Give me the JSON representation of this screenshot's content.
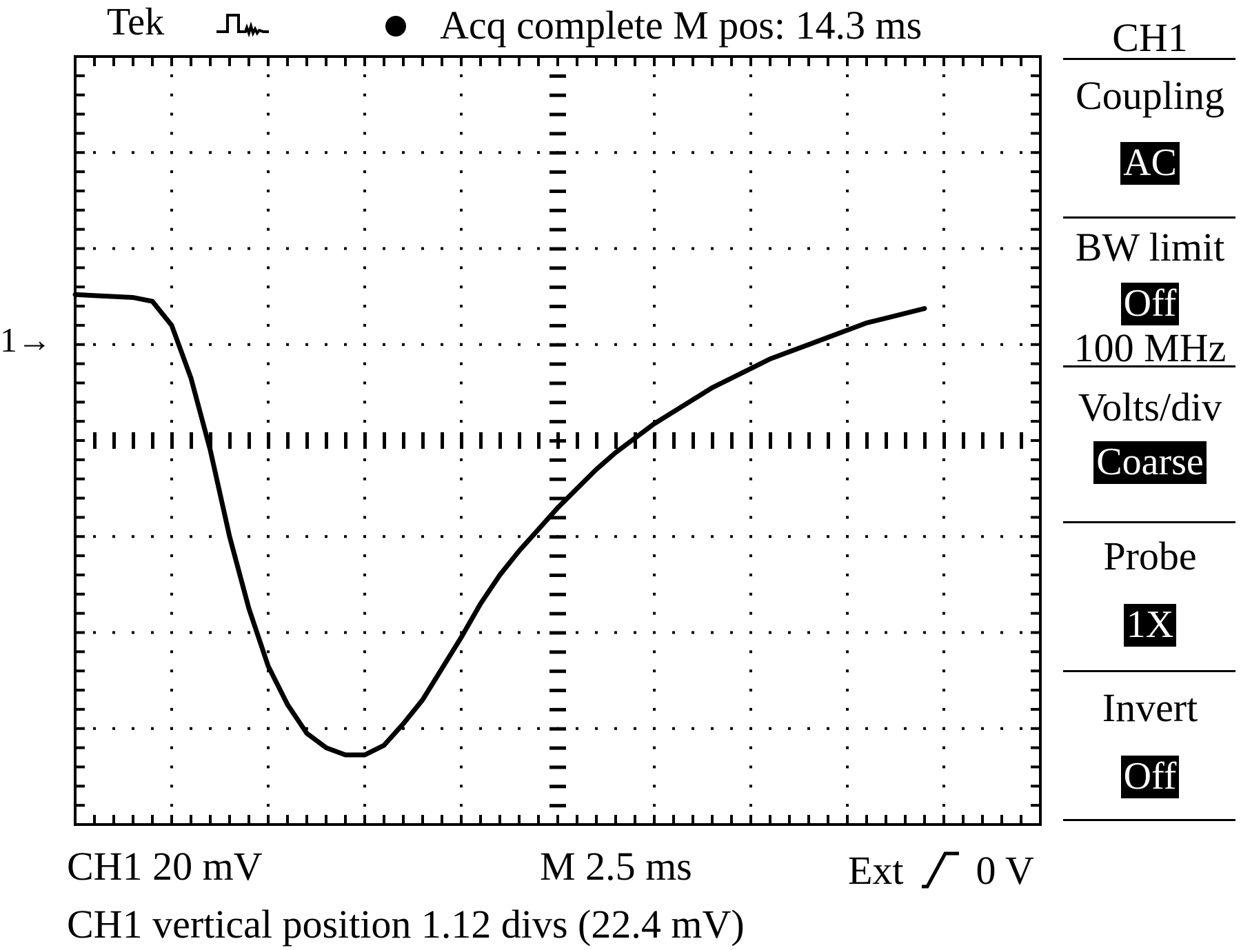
{
  "header": {
    "brand": "Tek",
    "trigger_icon": "pulse-trigger-icon",
    "status_icon": "acquisition-dot-icon",
    "status": "Acq complete",
    "position_label": "M pos: 14.3 ms"
  },
  "screen": {
    "channel_marker": "1→",
    "grid_divisions": {
      "horizontal": 10,
      "vertical": 8
    },
    "trace_color": "#000000",
    "grid_color": "#000000"
  },
  "chart_data": {
    "type": "line",
    "title": "",
    "xlabel": "",
    "ylabel": "",
    "xlim": [
      0,
      25
    ],
    "ylim": [
      -88,
      72
    ],
    "series": [
      {
        "values_x_ms": [
          0,
          0.5,
          1.0,
          1.5,
          2.0,
          2.5,
          3.0,
          3.5,
          4.0,
          4.5,
          5.0,
          5.5,
          6.0,
          6.5,
          7.0,
          7.5,
          8.0,
          8.5,
          9.0,
          9.5,
          10.0,
          10.5,
          11.0,
          11.5,
          12.0,
          12.5,
          13.0,
          13.5,
          14.0,
          14.5,
          15.0,
          15.5,
          16.0,
          16.5,
          17.0,
          17.5,
          18.0,
          18.5,
          19.0,
          19.5,
          20.0,
          20.5,
          21.0,
          21.5,
          22.0
        ],
        "values_y_mV": [
          22.4,
          22.2,
          22.0,
          21.8,
          21.0,
          16,
          5,
          -10,
          -28,
          -43,
          -55,
          -63,
          -69,
          -72,
          -73.5,
          -73.5,
          -71.5,
          -67,
          -62,
          -55.5,
          -49,
          -42,
          -36,
          -31,
          -26.5,
          -22,
          -18,
          -14,
          -10.5,
          -7.5,
          -4.5,
          -2,
          0.5,
          3,
          5,
          7,
          9,
          10.5,
          12,
          13.5,
          15,
          16.5,
          17.5,
          18.5,
          19.5
        ]
      }
    ]
  },
  "footer": {
    "channel_scale": "CH1 20 mV",
    "timebase": "M 2.5 ms",
    "trigger_source": "Ext",
    "trigger_slope_icon": "rising-edge-icon",
    "trigger_level": "0 V",
    "message": "CH1 vertical position 1.12 divs (22.4 mV)"
  },
  "side_menu": {
    "title": "CH1",
    "coupling_label": "Coupling",
    "coupling_value": "AC",
    "bw_limit_label": "BW limit",
    "bw_limit_value": "Off",
    "bw_limit_caption": "100 MHz",
    "volts_div_label": "Volts/div",
    "volts_div_value": "Coarse",
    "probe_label": "Probe",
    "probe_value": "1X",
    "invert_label": "Invert",
    "invert_value": "Off"
  }
}
